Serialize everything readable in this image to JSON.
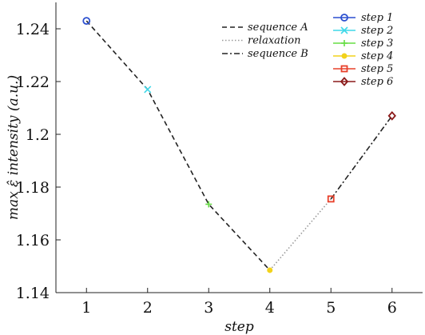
{
  "chart_data": {
    "type": "line",
    "xlabel": "step",
    "ylabel": "max ε̂ intensity (a.u.)",
    "xlim": [
      0.5,
      6.5
    ],
    "ylim": [
      1.14,
      1.25
    ],
    "x_ticks": [
      1,
      2,
      3,
      4,
      5,
      6
    ],
    "x_tick_labels": [
      "1",
      "2",
      "3",
      "4",
      "5",
      "6"
    ],
    "y_ticks": [
      1.14,
      1.16,
      1.18,
      1.2,
      1.22,
      1.24
    ],
    "y_tick_labels": [
      "1.14",
      "1.16",
      "1.18",
      "1.2",
      "1.22",
      "1.24"
    ],
    "grid": false,
    "line_series": [
      {
        "name": "sequence A",
        "style": "dashed",
        "color": "#222222",
        "x": [
          1,
          2,
          3,
          4
        ],
        "y": [
          1.243,
          1.217,
          1.1735,
          1.1485
        ]
      },
      {
        "name": "relaxation",
        "style": "dotted",
        "color": "#999999",
        "x": [
          4,
          5
        ],
        "y": [
          1.1485,
          1.1755
        ]
      },
      {
        "name": "sequence B",
        "style": "dashdot",
        "color": "#222222",
        "x": [
          5,
          6
        ],
        "y": [
          1.1755,
          1.207
        ]
      }
    ],
    "point_series": [
      {
        "name": "step 1",
        "x": 1,
        "y": 1.243,
        "color": "#2b4fcf",
        "marker": "circle"
      },
      {
        "name": "step 2",
        "x": 2,
        "y": 1.217,
        "color": "#3fd8e8",
        "marker": "x"
      },
      {
        "name": "step 3",
        "x": 3,
        "y": 1.1735,
        "color": "#66dd44",
        "marker": "plus"
      },
      {
        "name": "step 4",
        "x": 4,
        "y": 1.1485,
        "color": "#f2d21b",
        "marker": "dot"
      },
      {
        "name": "step 5",
        "x": 5,
        "y": 1.1755,
        "color": "#e8402a",
        "marker": "square"
      },
      {
        "name": "step 6",
        "x": 6,
        "y": 1.207,
        "color": "#8b1a1a",
        "marker": "diamond"
      }
    ],
    "legends": [
      "top-center",
      "top-right"
    ]
  }
}
